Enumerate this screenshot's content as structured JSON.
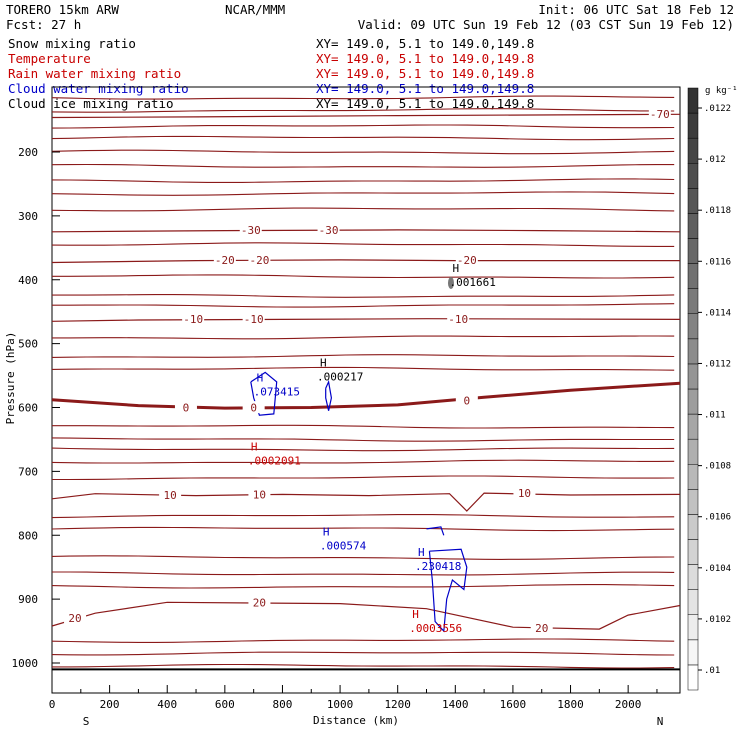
{
  "header": {
    "model": "TORERO  15km ARW",
    "org": "NCAR/MMM",
    "init": "Init: 06 UTC Sat 18 Feb 12",
    "fcst": "Fcst:   27 h",
    "valid": "Valid: 09 UTC Sun 19 Feb 12 (03 CST Sun 19 Feb 12)",
    "fields": [
      {
        "name": "Snow mixing ratio",
        "xy": "XY= 149.0,  5.1 to 149.0,149.8",
        "color": "#000000"
      },
      {
        "name": "Temperature",
        "xy": "XY= 149.0,  5.1 to 149.0,149.8",
        "color": "#c80000"
      },
      {
        "name": "Rain water mixing ratio",
        "xy": "XY= 149.0,  5.1 to 149.0,149.8",
        "color": "#c80000"
      },
      {
        "name": "Cloud water mixing ratio",
        "xy": "XY= 149.0,  5.1 to 149.0,149.8",
        "color": "#0000c8"
      },
      {
        "name": "Cloud ice mixing ratio",
        "xy": "XY= 149.0,  5.1 to 149.0,149.8",
        "color": "#000000"
      }
    ]
  },
  "chart_data": {
    "type": "contour",
    "xlabel": "Distance (km)",
    "ylabel": "Pressure (hPa)",
    "xlim": [
      0,
      2180
    ],
    "ylim": [
      1050,
      130
    ],
    "x_ticks": [
      0,
      200,
      400,
      600,
      800,
      1000,
      1200,
      1400,
      1600,
      1800,
      2000
    ],
    "y_ticks": [
      200,
      300,
      400,
      500,
      600,
      700,
      800,
      900,
      1000
    ],
    "x_end_labels": {
      "left": "S",
      "right": "N"
    },
    "temperature_contours": [
      {
        "value": -70,
        "label": "-70",
        "points": [
          [
            0,
            146
          ],
          [
            500,
            145
          ],
          [
            1200,
            143
          ],
          [
            2180,
            141
          ]
        ]
      },
      {
        "value": -30,
        "label": "-30",
        "points": [
          [
            0,
            325
          ],
          [
            600,
            323
          ],
          [
            1200,
            322
          ],
          [
            1700,
            323
          ],
          [
            2180,
            325
          ]
        ]
      },
      {
        "value": -20,
        "label": "-20",
        "points": [
          [
            0,
            373
          ],
          [
            500,
            370
          ],
          [
            1000,
            369
          ],
          [
            1400,
            370
          ],
          [
            2180,
            370
          ]
        ]
      },
      {
        "value": -10,
        "label": "-10",
        "points": [
          [
            0,
            465
          ],
          [
            300,
            463
          ],
          [
            800,
            462
          ],
          [
            1300,
            461
          ],
          [
            2180,
            462
          ]
        ]
      },
      {
        "value": 0,
        "label": "0",
        "bold": true,
        "points": [
          [
            0,
            588
          ],
          [
            300,
            597
          ],
          [
            600,
            601
          ],
          [
            900,
            600
          ],
          [
            1200,
            596
          ],
          [
            1500,
            584
          ],
          [
            1800,
            573
          ],
          [
            2180,
            562
          ]
        ]
      },
      {
        "value": 10,
        "label": "10",
        "points": [
          [
            0,
            743
          ],
          [
            150,
            735
          ],
          [
            500,
            738
          ],
          [
            800,
            736
          ],
          [
            1100,
            738
          ],
          [
            1380,
            735
          ],
          [
            1440,
            762
          ],
          [
            1500,
            734
          ],
          [
            1800,
            737
          ],
          [
            2180,
            736
          ]
        ]
      },
      {
        "value": 20,
        "label": "20",
        "points": [
          [
            0,
            942
          ],
          [
            150,
            922
          ],
          [
            400,
            905
          ],
          [
            700,
            906
          ],
          [
            1000,
            907
          ],
          [
            1300,
            915
          ],
          [
            1600,
            944
          ],
          [
            1900,
            947
          ],
          [
            2000,
            925
          ],
          [
            2180,
            910
          ]
        ]
      }
    ],
    "labels": [
      {
        "text": "-70",
        "x": 2110,
        "p": 141,
        "color": "#8b1a1a"
      },
      {
        "text": "-30",
        "x": 690,
        "p": 323,
        "color": "#8b1a1a"
      },
      {
        "text": "-30",
        "x": 960,
        "p": 323,
        "color": "#8b1a1a"
      },
      {
        "text": "-20",
        "x": 600,
        "p": 370,
        "color": "#8b1a1a"
      },
      {
        "text": "-20",
        "x": 720,
        "p": 370,
        "color": "#8b1a1a"
      },
      {
        "text": "-20",
        "x": 1440,
        "p": 370,
        "color": "#8b1a1a"
      },
      {
        "text": "-10",
        "x": 490,
        "p": 462,
        "color": "#8b1a1a"
      },
      {
        "text": "-10",
        "x": 700,
        "p": 462,
        "color": "#8b1a1a"
      },
      {
        "text": "-10",
        "x": 1410,
        "p": 462,
        "color": "#8b1a1a"
      },
      {
        "text": "0",
        "x": 465,
        "p": 601,
        "color": "#8b1a1a"
      },
      {
        "text": "0",
        "x": 700,
        "p": 601,
        "color": "#8b1a1a"
      },
      {
        "text": "0",
        "x": 1440,
        "p": 590,
        "color": "#8b1a1a"
      },
      {
        "text": "10",
        "x": 410,
        "p": 738,
        "color": "#8b1a1a"
      },
      {
        "text": "10",
        "x": 720,
        "p": 737,
        "color": "#8b1a1a"
      },
      {
        "text": "10",
        "x": 1640,
        "p": 735,
        "color": "#8b1a1a"
      },
      {
        "text": "20",
        "x": 80,
        "p": 930,
        "color": "#8b1a1a"
      },
      {
        "text": "20",
        "x": 720,
        "p": 906,
        "color": "#8b1a1a"
      },
      {
        "text": "20",
        "x": 1700,
        "p": 946,
        "color": "#8b1a1a"
      }
    ],
    "maxima": [
      {
        "field": "Snow mixing ratio",
        "mark": "H",
        "value": ".001661",
        "x": 1380,
        "p": 400,
        "color": "#000000"
      },
      {
        "field": "Cloud ice mixing ratio",
        "mark": "H",
        "value": ".000217",
        "x": 920,
        "p": 548,
        "color": "#000000"
      },
      {
        "field": "Cloud water mixing ratio",
        "mark": "H",
        "value": ".073415",
        "x": 700,
        "p": 572,
        "color": "#0000c8"
      },
      {
        "field": "Rain water mixing ratio",
        "mark": "H",
        "value": ".0002091",
        "x": 680,
        "p": 680,
        "color": "#c80000"
      },
      {
        "field": "Cloud water mixing ratio",
        "mark": "H",
        "value": ".000574",
        "x": 930,
        "p": 813,
        "color": "#0000c8"
      },
      {
        "field": "Cloud water mixing ratio",
        "mark": "H",
        "value": ".230418",
        "x": 1260,
        "p": 845,
        "color": "#0000c8"
      },
      {
        "field": "Rain water mixing ratio",
        "mark": "H",
        "value": ".0003556",
        "x": 1240,
        "p": 942,
        "color": "#c80000"
      }
    ],
    "colorbar": {
      "unit": "g kg⁻¹",
      "ticks": [
        ".01",
        ".0102",
        ".0104",
        ".0106",
        ".0108",
        ".011",
        ".0112",
        ".0114",
        ".0116",
        ".0118",
        ".012",
        ".0122"
      ],
      "color_low": "#ffffff",
      "color_high": "#333333"
    },
    "colors": {
      "temperature": "#8b1a1a",
      "cloud_water": "#0000c8",
      "rain_water": "#c80000",
      "ground": "#000000"
    }
  }
}
